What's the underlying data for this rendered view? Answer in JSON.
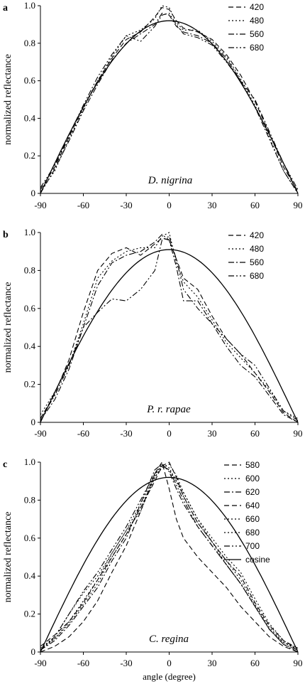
{
  "chart_data": [
    {
      "type": "line",
      "panel_label": "a",
      "annotation": "D. nigrina",
      "ylabel": "normalized reflectance",
      "xlabel": "",
      "xlim": [
        -90,
        90
      ],
      "ylim": [
        0,
        1.0
      ],
      "xticks": [
        "-90",
        "-60",
        "-30",
        "0",
        "30",
        "60",
        "90"
      ],
      "yticks": [
        "0",
        "0.2",
        "0.4",
        "0.6",
        "0.8",
        "1.0"
      ],
      "legend_position": "top-right",
      "series": [
        {
          "name": "420",
          "style": "dash",
          "x": [
            -90,
            -80,
            -70,
            -60,
            -50,
            -40,
            -30,
            -20,
            -10,
            -5,
            0,
            5,
            10,
            20,
            30,
            40,
            50,
            60,
            70,
            80,
            90
          ],
          "y": [
            0.02,
            0.14,
            0.3,
            0.46,
            0.6,
            0.72,
            0.82,
            0.86,
            0.94,
            0.99,
            0.98,
            0.92,
            0.88,
            0.86,
            0.82,
            0.74,
            0.63,
            0.49,
            0.32,
            0.14,
            0.01
          ]
        },
        {
          "name": "480",
          "style": "dot",
          "x": [
            -90,
            -80,
            -70,
            -60,
            -50,
            -40,
            -30,
            -20,
            -10,
            -5,
            0,
            5,
            10,
            20,
            30,
            40,
            50,
            60,
            70,
            80,
            90
          ],
          "y": [
            0.01,
            0.12,
            0.29,
            0.45,
            0.6,
            0.73,
            0.84,
            0.87,
            0.93,
            1.0,
            0.99,
            0.91,
            0.87,
            0.87,
            0.81,
            0.73,
            0.61,
            0.47,
            0.3,
            0.12,
            0.0
          ]
        },
        {
          "name": "560",
          "style": "dashdot",
          "x": [
            -90,
            -80,
            -70,
            -60,
            -50,
            -40,
            -30,
            -20,
            -10,
            -5,
            0,
            5,
            10,
            20,
            30,
            40,
            50,
            60,
            70,
            80,
            90
          ],
          "y": [
            0.0,
            0.13,
            0.28,
            0.44,
            0.58,
            0.71,
            0.8,
            0.85,
            0.9,
            0.96,
            0.95,
            0.89,
            0.86,
            0.84,
            0.8,
            0.72,
            0.6,
            0.46,
            0.29,
            0.12,
            0.0
          ]
        },
        {
          "name": "680",
          "style": "dashdotdot",
          "x": [
            -90,
            -80,
            -70,
            -60,
            -50,
            -40,
            -30,
            -20,
            -10,
            -5,
            0,
            5,
            10,
            20,
            30,
            40,
            50,
            60,
            70,
            80,
            90
          ],
          "y": [
            0.03,
            0.15,
            0.31,
            0.47,
            0.62,
            0.74,
            0.84,
            0.81,
            0.89,
            0.95,
            0.96,
            0.9,
            0.85,
            0.83,
            0.79,
            0.7,
            0.6,
            0.5,
            0.33,
            0.16,
            0.02
          ]
        },
        {
          "name": "",
          "style": "solid",
          "function": "cosine",
          "amplitude": 0.92,
          "x": [
            -90,
            90
          ]
        }
      ]
    },
    {
      "type": "line",
      "panel_label": "b",
      "annotation": "P. r. rapae",
      "ylabel": "normalized reflectance",
      "xlabel": "",
      "xlim": [
        -90,
        90
      ],
      "ylim": [
        0,
        1.0
      ],
      "xticks": [
        "-90",
        "-60",
        "-30",
        "0",
        "30",
        "60",
        "90"
      ],
      "yticks": [
        "0",
        "0.2",
        "0.4",
        "0.6",
        "0.8",
        "1.0"
      ],
      "legend_position": "top-right",
      "series": [
        {
          "name": "420",
          "style": "dash",
          "x": [
            -90,
            -80,
            -70,
            -60,
            -50,
            -40,
            -30,
            -20,
            -10,
            -5,
            0,
            5,
            10,
            20,
            30,
            40,
            50,
            60,
            70,
            80,
            90
          ],
          "y": [
            0.02,
            0.15,
            0.33,
            0.58,
            0.8,
            0.89,
            0.92,
            0.88,
            0.94,
            0.97,
            0.96,
            0.86,
            0.76,
            0.7,
            0.56,
            0.44,
            0.36,
            0.26,
            0.16,
            0.05,
            0.0
          ]
        },
        {
          "name": "480",
          "style": "dot",
          "x": [
            -90,
            -80,
            -70,
            -60,
            -50,
            -40,
            -30,
            -20,
            -10,
            -5,
            0,
            5,
            10,
            20,
            30,
            40,
            50,
            60,
            70,
            80,
            90
          ],
          "y": [
            0.04,
            0.16,
            0.3,
            0.52,
            0.76,
            0.85,
            0.9,
            0.92,
            0.92,
            0.98,
            1.0,
            0.84,
            0.74,
            0.66,
            0.54,
            0.42,
            0.34,
            0.26,
            0.17,
            0.06,
            0.02
          ]
        },
        {
          "name": "560",
          "style": "dashdot",
          "x": [
            -90,
            -80,
            -70,
            -60,
            -50,
            -40,
            -30,
            -20,
            -10,
            -5,
            0,
            5,
            10,
            20,
            30,
            40,
            50,
            60,
            70,
            80,
            90
          ],
          "y": [
            0.01,
            0.12,
            0.28,
            0.5,
            0.72,
            0.84,
            0.88,
            0.9,
            0.95,
            0.99,
            0.96,
            0.82,
            0.64,
            0.64,
            0.52,
            0.4,
            0.3,
            0.24,
            0.14,
            0.04,
            0.0
          ]
        },
        {
          "name": "680",
          "style": "dashdotdot",
          "x": [
            -90,
            -80,
            -70,
            -60,
            -50,
            -40,
            -30,
            -20,
            -10,
            -5,
            0,
            5,
            10,
            20,
            30,
            40,
            50,
            60,
            70,
            80,
            90
          ],
          "y": [
            0.02,
            0.14,
            0.3,
            0.5,
            0.58,
            0.65,
            0.64,
            0.7,
            0.8,
            0.96,
            0.98,
            0.86,
            0.7,
            0.6,
            0.52,
            0.44,
            0.36,
            0.3,
            0.18,
            0.06,
            0.01
          ]
        },
        {
          "name": "",
          "style": "solid",
          "function": "cosine",
          "amplitude": 0.91,
          "x": [
            -90,
            90
          ]
        }
      ]
    },
    {
      "type": "line",
      "panel_label": "c",
      "annotation": "C. regina",
      "ylabel": "normalized reflectance",
      "xlabel": "angle (degree)",
      "xlim": [
        -90,
        90
      ],
      "ylim": [
        0,
        1.0
      ],
      "xticks": [
        "-90",
        "-60",
        "-30",
        "0",
        "30",
        "60",
        "90"
      ],
      "yticks": [
        "0",
        "0.2",
        "0.4",
        "0.6",
        "0.8",
        "1.0"
      ],
      "legend_position": "top-right",
      "series": [
        {
          "name": "580",
          "style": "dash",
          "x": [
            -90,
            -80,
            -70,
            -60,
            -50,
            -40,
            -30,
            -20,
            -10,
            -5,
            0,
            5,
            10,
            20,
            30,
            40,
            50,
            60,
            70,
            80,
            90
          ],
          "y": [
            0.0,
            0.03,
            0.08,
            0.16,
            0.27,
            0.42,
            0.56,
            0.74,
            0.94,
            1.0,
            0.86,
            0.7,
            0.6,
            0.5,
            0.42,
            0.34,
            0.24,
            0.16,
            0.08,
            0.03,
            0.0
          ]
        },
        {
          "name": "600",
          "style": "dot",
          "x": [
            -90,
            -80,
            -70,
            -60,
            -50,
            -40,
            -30,
            -20,
            -10,
            -5,
            0,
            5,
            10,
            20,
            30,
            40,
            50,
            60,
            70,
            80,
            90
          ],
          "y": [
            0.02,
            0.08,
            0.2,
            0.31,
            0.4,
            0.52,
            0.64,
            0.74,
            0.92,
            0.98,
            0.96,
            0.9,
            0.84,
            0.7,
            0.58,
            0.46,
            0.36,
            0.24,
            0.12,
            0.05,
            0.01
          ]
        },
        {
          "name": "620",
          "style": "dashdot",
          "x": [
            -90,
            -80,
            -70,
            -60,
            -50,
            -40,
            -30,
            -20,
            -10,
            -5,
            0,
            5,
            10,
            20,
            30,
            40,
            50,
            60,
            70,
            80,
            90
          ],
          "y": [
            0.01,
            0.06,
            0.14,
            0.24,
            0.34,
            0.48,
            0.6,
            0.78,
            0.96,
            0.99,
            0.95,
            0.86,
            0.78,
            0.66,
            0.56,
            0.46,
            0.36,
            0.24,
            0.12,
            0.04,
            0.0
          ]
        },
        {
          "name": "640",
          "style": "dash",
          "x": [
            -90,
            -80,
            -70,
            -60,
            -50,
            -40,
            -30,
            -20,
            -10,
            -5,
            0,
            5,
            10,
            20,
            30,
            40,
            50,
            60,
            70,
            80,
            90
          ],
          "y": [
            0.03,
            0.09,
            0.16,
            0.26,
            0.38,
            0.5,
            0.62,
            0.76,
            0.9,
            0.98,
            1.0,
            0.92,
            0.82,
            0.68,
            0.58,
            0.48,
            0.4,
            0.26,
            0.14,
            0.06,
            0.02
          ]
        },
        {
          "name": "660",
          "style": "dot",
          "x": [
            -90,
            -80,
            -70,
            -60,
            -50,
            -40,
            -30,
            -20,
            -10,
            -5,
            0,
            5,
            10,
            20,
            30,
            40,
            50,
            60,
            70,
            80,
            90
          ],
          "y": [
            0.02,
            0.07,
            0.15,
            0.25,
            0.36,
            0.5,
            0.62,
            0.76,
            0.92,
            0.97,
            0.99,
            0.93,
            0.84,
            0.7,
            0.6,
            0.5,
            0.42,
            0.28,
            0.15,
            0.06,
            0.01
          ]
        },
        {
          "name": "680",
          "style": "dot",
          "x": [
            -90,
            -80,
            -70,
            -60,
            -50,
            -40,
            -30,
            -20,
            -10,
            -5,
            0,
            5,
            10,
            20,
            30,
            40,
            50,
            60,
            70,
            80,
            90
          ],
          "y": [
            0.01,
            0.07,
            0.16,
            0.27,
            0.38,
            0.52,
            0.64,
            0.78,
            0.93,
            0.99,
            0.97,
            0.9,
            0.82,
            0.68,
            0.58,
            0.48,
            0.38,
            0.25,
            0.13,
            0.05,
            0.02
          ]
        },
        {
          "name": "700",
          "style": "dashdotdot",
          "x": [
            -90,
            -80,
            -70,
            -60,
            -50,
            -40,
            -30,
            -20,
            -10,
            -5,
            0,
            5,
            10,
            20,
            30,
            40,
            50,
            60,
            70,
            80,
            90
          ],
          "y": [
            0.01,
            0.08,
            0.2,
            0.32,
            0.42,
            0.54,
            0.66,
            0.8,
            0.94,
            0.98,
            0.96,
            0.88,
            0.8,
            0.66,
            0.56,
            0.46,
            0.36,
            0.24,
            0.12,
            0.04,
            0.01
          ]
        },
        {
          "name": "cosine",
          "style": "solid",
          "function": "cosine",
          "amplitude": 0.92,
          "x": [
            -90,
            90
          ]
        }
      ]
    }
  ]
}
